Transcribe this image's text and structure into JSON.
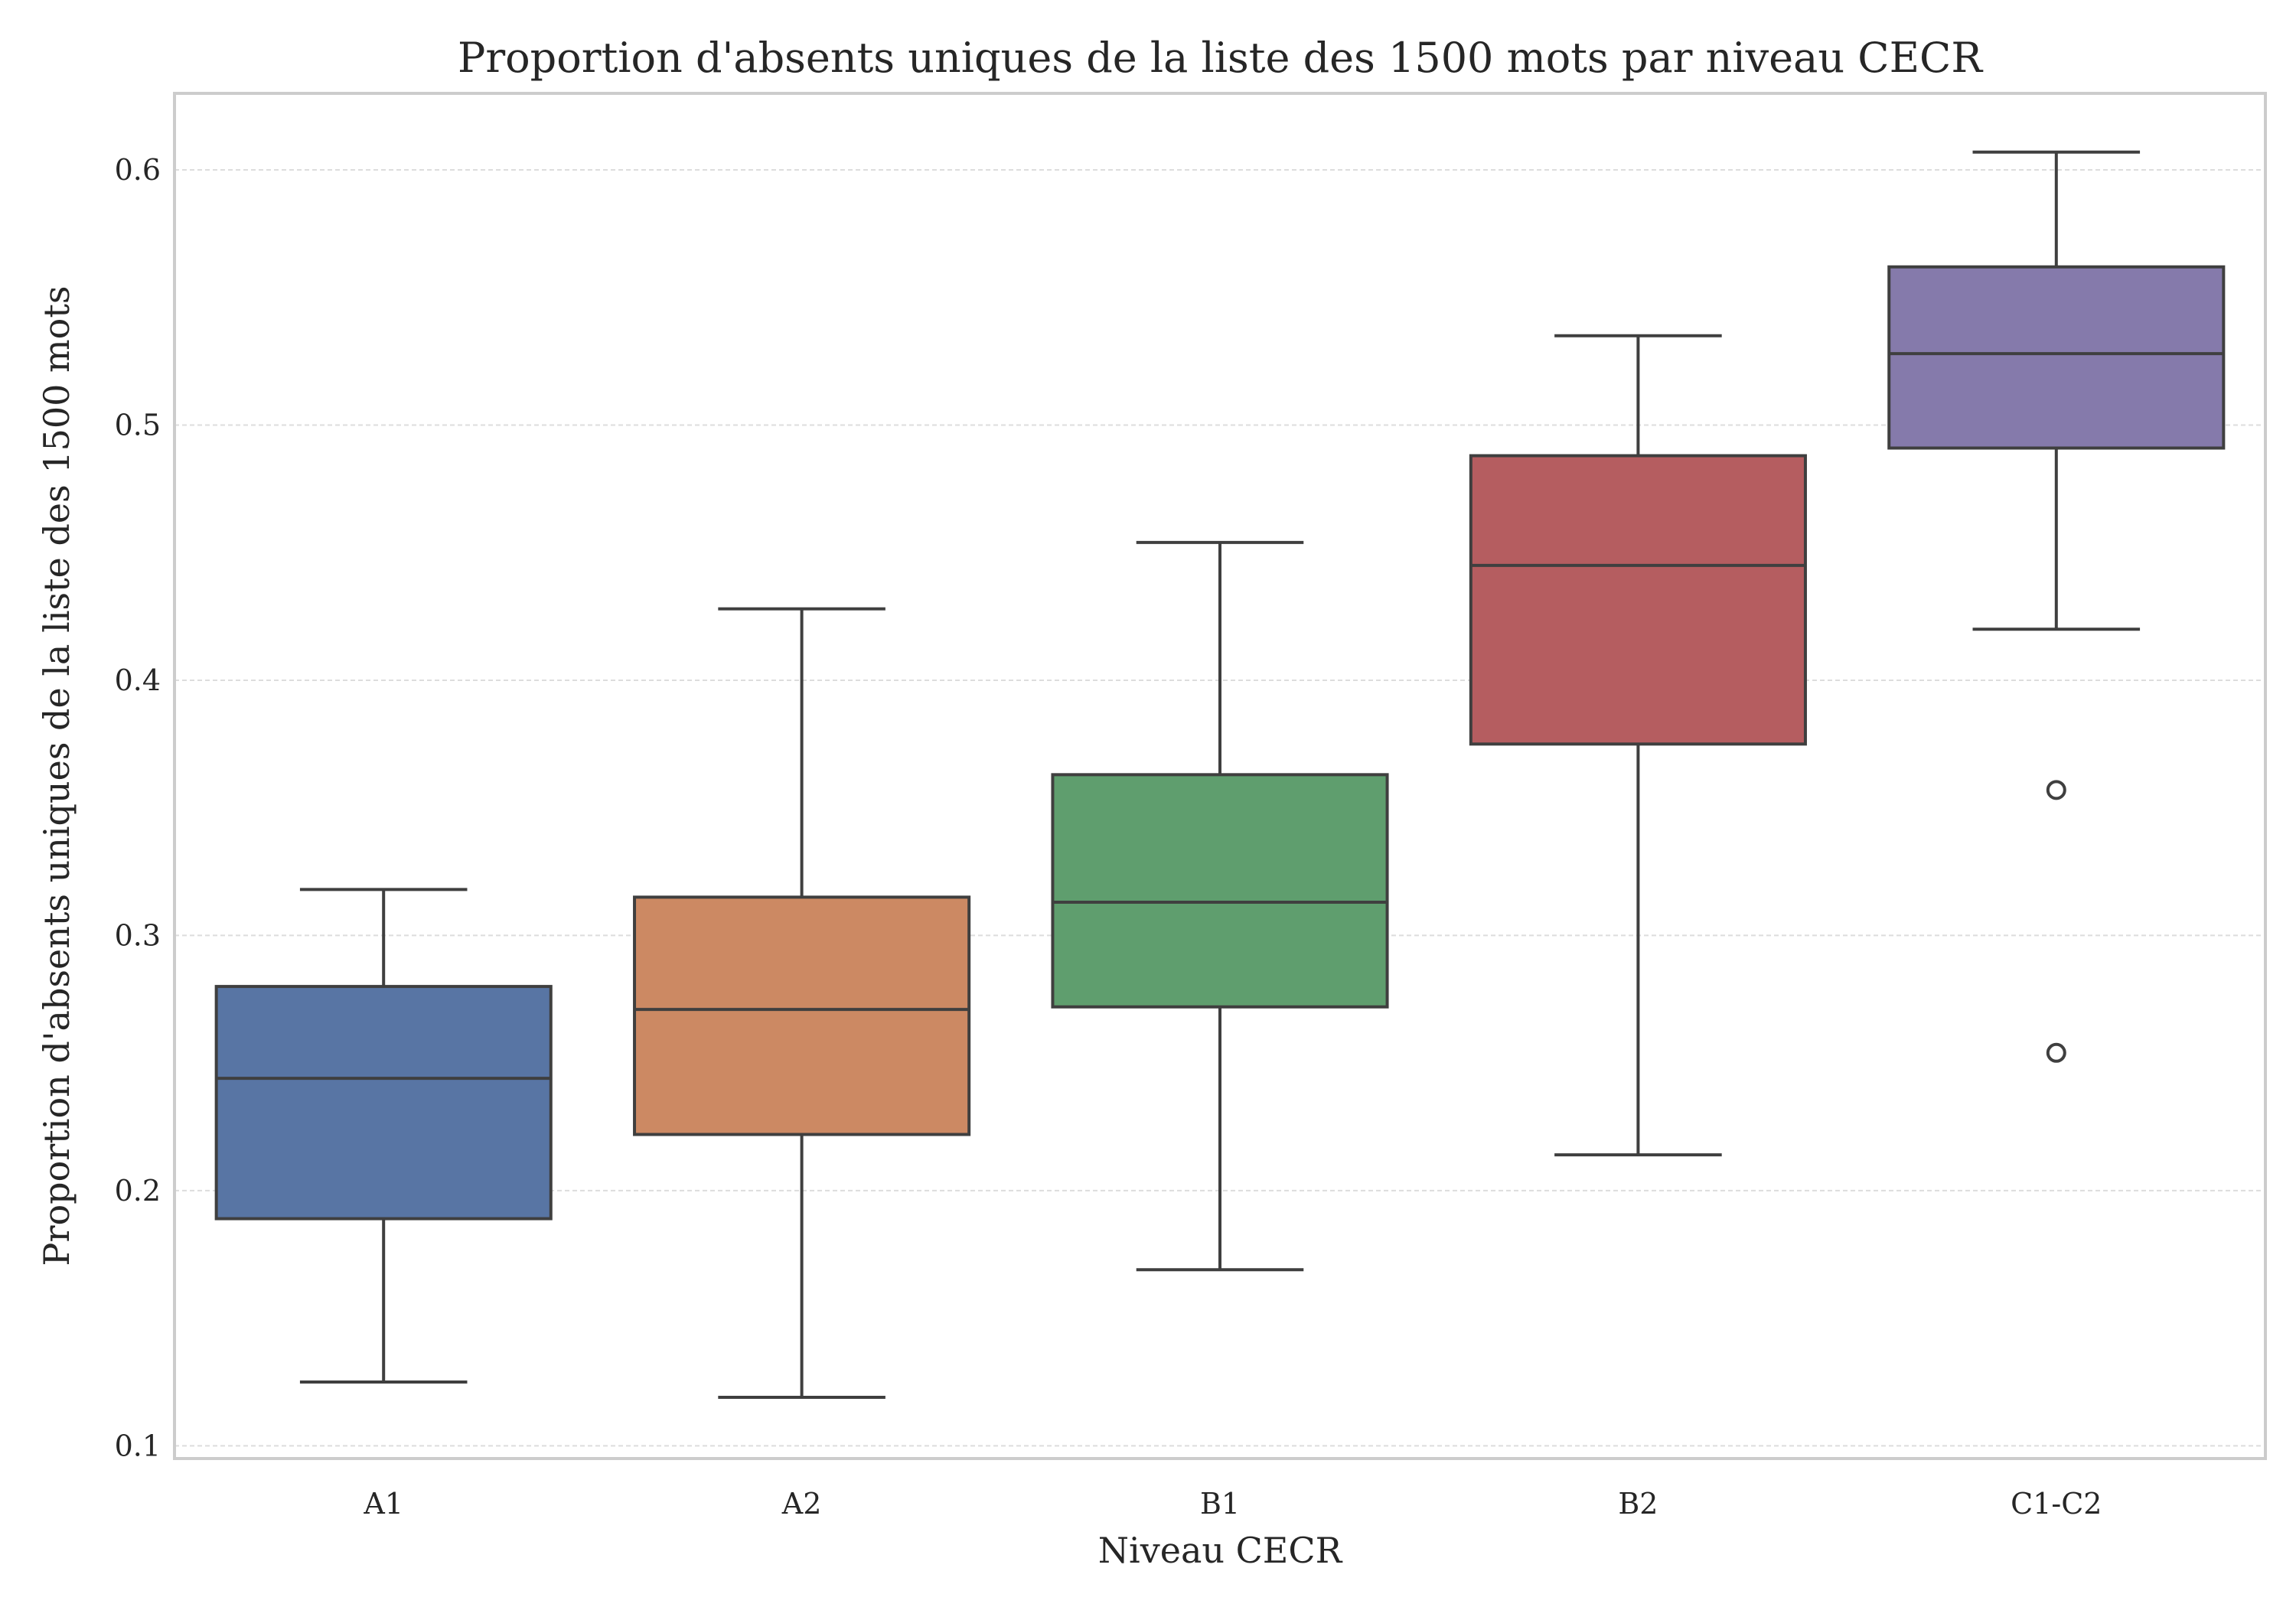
{
  "chart_data": {
    "type": "boxplot",
    "title": "Proportion d'absents uniques de la liste des 1500 mots par niveau CECR",
    "xlabel": "Niveau CECR",
    "ylabel": "Proportion d'absents uniques de la liste des 1500 mots",
    "ylim": [
      0.095,
      0.63
    ],
    "yticks": [
      "0.1",
      "0.2",
      "0.3",
      "0.4",
      "0.5",
      "0.6"
    ],
    "grid": "horizontal, dashed",
    "legend": "none",
    "categories": [
      "A1",
      "A2",
      "B1",
      "B2",
      "C1-C2"
    ],
    "boxes": [
      {
        "category": "A1",
        "whisker_low": 0.125,
        "q1": 0.189,
        "median": 0.244,
        "q3": 0.28,
        "whisker_high": 0.318,
        "outliers": [],
        "color": "#5875a4"
      },
      {
        "category": "A2",
        "whisker_low": 0.119,
        "q1": 0.222,
        "median": 0.271,
        "q3": 0.315,
        "whisker_high": 0.428,
        "outliers": [],
        "color": "#cc8963"
      },
      {
        "category": "B1",
        "whisker_low": 0.169,
        "q1": 0.272,
        "median": 0.313,
        "q3": 0.363,
        "whisker_high": 0.454,
        "outliers": [],
        "color": "#5f9e6e"
      },
      {
        "category": "B2",
        "whisker_low": 0.214,
        "q1": 0.375,
        "median": 0.445,
        "q3": 0.488,
        "whisker_high": 0.535,
        "outliers": [],
        "color": "#b55d60"
      },
      {
        "category": "C1-C2",
        "whisker_low": 0.42,
        "q1": 0.491,
        "median": 0.528,
        "q3": 0.562,
        "whisker_high": 0.607,
        "outliers": [
          0.357,
          0.254
        ],
        "color": "#857aab"
      }
    ]
  }
}
